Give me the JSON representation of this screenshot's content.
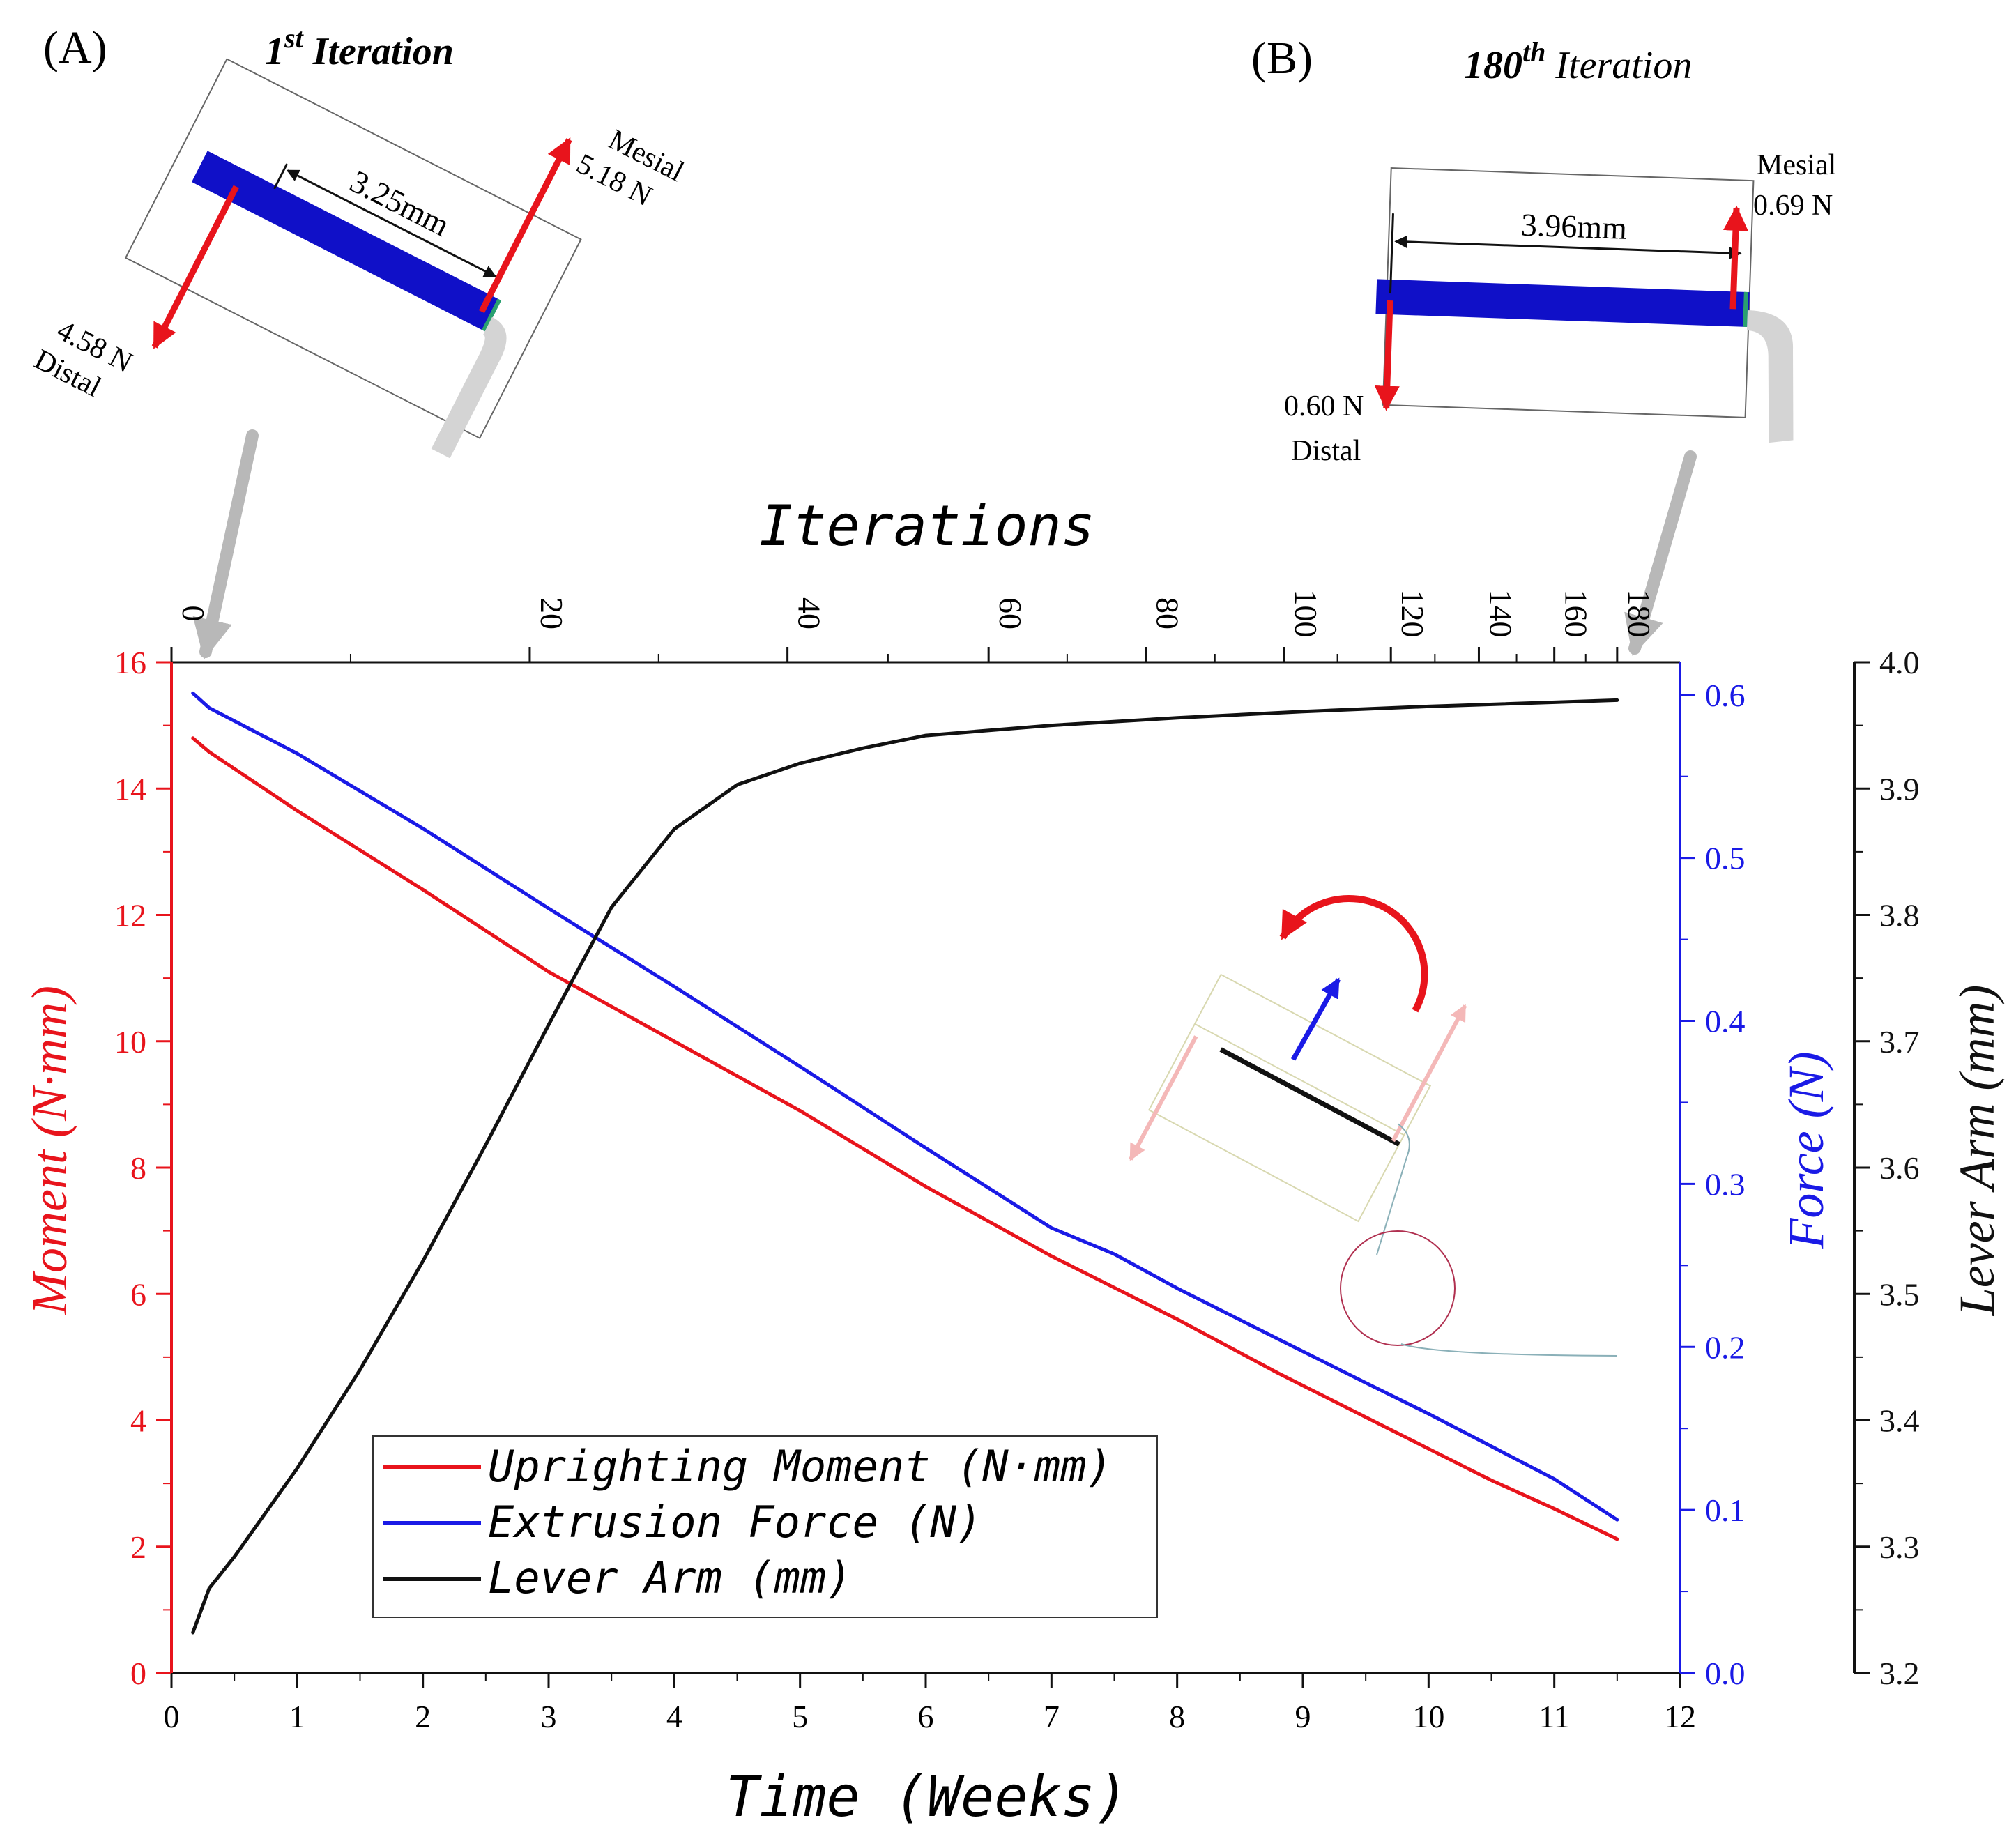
{
  "panels": {
    "a": {
      "letter": "(A)",
      "title_main": "1",
      "title_sup": "st",
      "title_rest": " Iteration",
      "length": "3.25mm",
      "mesial_label": "Mesial",
      "mesial_force": "5.18 N",
      "distal_force": "4.58 N",
      "distal_label": "Distal"
    },
    "b": {
      "letter": "(B)",
      "title_main": "180",
      "title_sup": "th",
      "title_rest": " Iteration",
      "length": "3.96mm",
      "mesial_label": "Mesial",
      "mesial_force": "0.69 N",
      "distal_force": "0.60 N",
      "distal_label": "Distal"
    }
  },
  "colors": {
    "moment": "#e8141c",
    "force": "#1a1ae6",
    "lever": "#111111",
    "tooth": "#1010c8",
    "arrow_gray": "#b8b8b8",
    "light_arrow": "#f4b8b8"
  },
  "chart_data": {
    "type": "line",
    "xlabel": "Time (Weeks)",
    "x2label": "Iterations",
    "ylabel_left": "Moment (N·mm)",
    "ylabel_force": "Force (N)",
    "ylabel_lever": "Lever Arm (mm)",
    "xlim": [
      0,
      12
    ],
    "ylim_left": [
      0,
      16
    ],
    "ylim_force": [
      0,
      0.62
    ],
    "ylim_lever": [
      3.2,
      4.0
    ],
    "x_ticks": [
      "0",
      "1",
      "2",
      "3",
      "4",
      "5",
      "6",
      "7",
      "8",
      "9",
      "10",
      "11",
      "12"
    ],
    "y_left_ticks": [
      "0",
      "2",
      "4",
      "6",
      "8",
      "10",
      "12",
      "14",
      "16"
    ],
    "y_force_ticks": [
      "0.0",
      "0.1",
      "0.2",
      "0.3",
      "0.4",
      "0.5",
      "0.6"
    ],
    "y_lever_ticks": [
      "3.2",
      "3.3",
      "3.4",
      "3.5",
      "3.6",
      "3.7",
      "3.8",
      "3.9",
      "4.0"
    ],
    "top_ticks": [
      {
        "label": "0",
        "week": 0
      },
      {
        "label": "20",
        "week": 2.85
      },
      {
        "label": "40",
        "week": 4.9
      },
      {
        "label": "60",
        "week": 6.5
      },
      {
        "label": "80",
        "week": 7.75
      },
      {
        "label": "100",
        "week": 8.85
      },
      {
        "label": "120",
        "week": 9.7
      },
      {
        "label": "140",
        "week": 10.4
      },
      {
        "label": "160",
        "week": 11.0
      },
      {
        "label": "180",
        "week": 11.5
      }
    ],
    "legend": {
      "position": "bottom-left",
      "entries": [
        {
          "series": "moment",
          "prefix": "Uprighting Moment ",
          "unit": "(N·mm)"
        },
        {
          "series": "force",
          "prefix": "Extrusion Force ",
          "unit": "(N)"
        },
        {
          "series": "lever",
          "prefix": "Lever Arm ",
          "unit": "(mm)"
        }
      ]
    },
    "series": [
      {
        "key": "moment",
        "axis": "left",
        "color": "#e8141c",
        "points": [
          [
            0.17,
            14.8
          ],
          [
            0.3,
            14.58
          ],
          [
            1,
            13.65
          ],
          [
            2,
            12.4
          ],
          [
            3,
            11.1
          ],
          [
            4,
            10.0
          ],
          [
            5,
            8.9
          ],
          [
            6,
            7.7
          ],
          [
            7,
            6.6
          ],
          [
            7.5,
            6.1
          ],
          [
            8,
            5.6
          ],
          [
            8.8,
            4.75
          ],
          [
            9.5,
            4.05
          ],
          [
            10,
            3.55
          ],
          [
            10.5,
            3.05
          ],
          [
            11,
            2.6
          ],
          [
            11.5,
            2.12
          ]
        ]
      },
      {
        "key": "force",
        "axis": "force",
        "color": "#1a1ae6",
        "points": [
          [
            0.17,
            0.601
          ],
          [
            0.3,
            0.592
          ],
          [
            1,
            0.564
          ],
          [
            2,
            0.518
          ],
          [
            3,
            0.469
          ],
          [
            4,
            0.421
          ],
          [
            5,
            0.372
          ],
          [
            6,
            0.322
          ],
          [
            7,
            0.273
          ],
          [
            7.5,
            0.257
          ],
          [
            8,
            0.236
          ],
          [
            8.8,
            0.205
          ],
          [
            9.5,
            0.178
          ],
          [
            10,
            0.159
          ],
          [
            10.5,
            0.139
          ],
          [
            11,
            0.119
          ],
          [
            11.5,
            0.094
          ]
        ]
      },
      {
        "key": "lever",
        "axis": "lever",
        "color": "#111111",
        "points": [
          [
            0.17,
            3.232
          ],
          [
            0.3,
            3.267
          ],
          [
            0.5,
            3.292
          ],
          [
            1,
            3.362
          ],
          [
            1.5,
            3.44
          ],
          [
            2,
            3.526
          ],
          [
            2.5,
            3.618
          ],
          [
            3,
            3.713
          ],
          [
            3.5,
            3.806
          ],
          [
            4,
            3.868
          ],
          [
            4.5,
            3.903
          ],
          [
            5,
            3.92
          ],
          [
            5.5,
            3.932
          ],
          [
            6,
            3.942
          ],
          [
            7,
            3.95
          ],
          [
            8,
            3.956
          ],
          [
            9,
            3.961
          ],
          [
            10,
            3.965
          ],
          [
            11.5,
            3.97
          ]
        ]
      }
    ]
  }
}
